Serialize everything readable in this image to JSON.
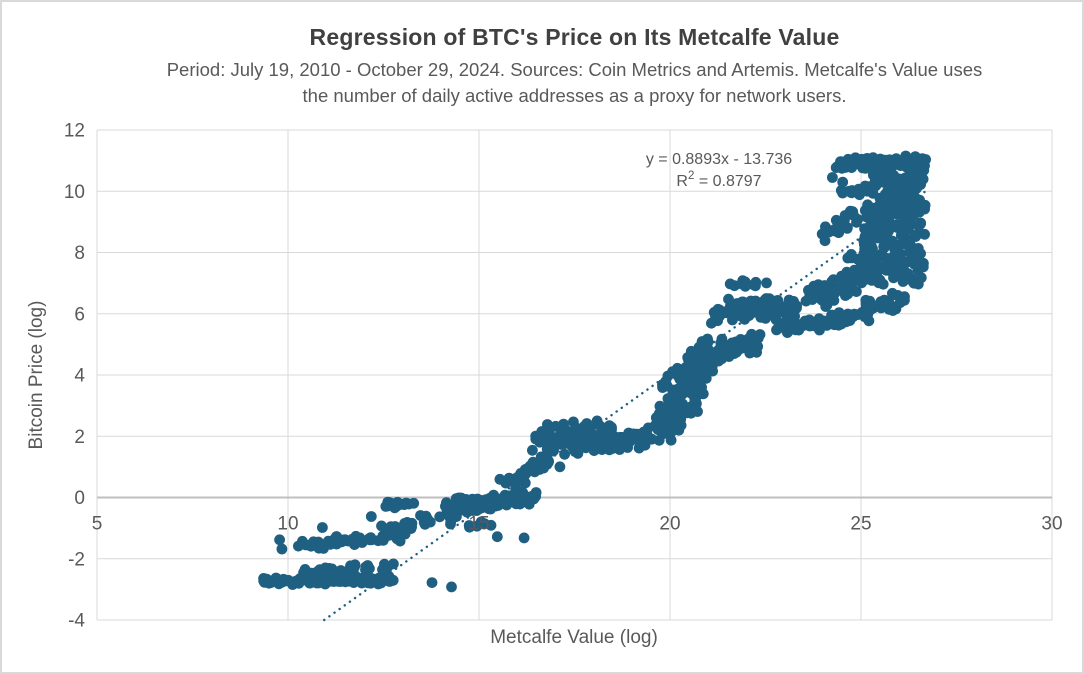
{
  "chart_data": {
    "type": "scatter",
    "title": "Regression of BTC's Price on Its Metcalfe Value",
    "subtitle_lines": [
      "Period: July 19, 2010 - October 29, 2024. Sources: Coin Metrics and Artemis. Metcalfe's Value uses",
      "the number of daily active addresses as a proxy for network users."
    ],
    "xlabel": "Metcalfe Value (log)",
    "ylabel": "Bitcoin Price (log)",
    "xlim": [
      5,
      30
    ],
    "ylim": [
      -4,
      12
    ],
    "x_ticks": [
      5,
      10,
      15,
      20,
      25,
      30
    ],
    "y_ticks": [
      12,
      10,
      8,
      6,
      4,
      2,
      0,
      -2,
      -4
    ],
    "grid": true,
    "legend": "none",
    "colors": {
      "gridline": "#d9d9d9",
      "axis_line": "#bfbfbf",
      "tick_text": "#595959",
      "axis_title_text": "#595959",
      "title_text": "#404040",
      "marker": "#1f6082"
    },
    "marker_radius": 5.4,
    "trendline": {
      "style": "dotted",
      "slope": 0.8893,
      "intercept": -13.736,
      "x_max": 26.7,
      "equation_label": "y = 0.8893x - 13.736",
      "r2_base": "R",
      "r2_sup": "2",
      "r2_value": " = 0.8797"
    },
    "point_cloud": {
      "seed": 5,
      "clusters": [
        {
          "x1": 9.3,
          "y1": -2.72,
          "x2": 12.75,
          "y2": -2.7,
          "n": 95,
          "jx": 0.12,
          "jy": 0.15
        },
        {
          "x1": 10.35,
          "y1": -2.38,
          "x2": 12.8,
          "y2": -2.32,
          "n": 30,
          "jx": 0.3,
          "jy": 0.18
        },
        {
          "x1": 10.35,
          "y1": -1.55,
          "x2": 13.15,
          "y2": -1.22,
          "n": 50,
          "jx": 0.25,
          "jy": 0.22
        },
        {
          "x1": 12.6,
          "y1": -1.05,
          "x2": 14.55,
          "y2": -0.5,
          "n": 28,
          "jx": 0.3,
          "jy": 0.28
        },
        {
          "x1": 12.55,
          "y1": -0.3,
          "x2": 13.25,
          "y2": -0.12,
          "n": 14,
          "jx": 0.18,
          "jy": 0.16
        },
        {
          "x1": 14.3,
          "y1": -0.32,
          "x2": 16.35,
          "y2": 0.02,
          "n": 115,
          "jx": 0.28,
          "jy": 0.28
        },
        {
          "x1": 14.6,
          "y1": -0.92,
          "x2": 15.35,
          "y2": -0.88,
          "n": 6,
          "jx": 0.25,
          "jy": 0.15
        },
        {
          "x1": 15.75,
          "y1": 0.35,
          "x2": 16.9,
          "y2": 1.3,
          "n": 34,
          "jx": 0.3,
          "jy": 0.32
        },
        {
          "x1": 16.6,
          "y1": 1.85,
          "x2": 18.3,
          "y2": 2.05,
          "n": 105,
          "jx": 0.35,
          "jy": 0.58
        },
        {
          "x1": 18.0,
          "y1": 1.8,
          "x2": 19.5,
          "y2": 1.95,
          "n": 70,
          "jx": 0.3,
          "jy": 0.36
        },
        {
          "x1": 19.75,
          "y1": 2.1,
          "x2": 20.6,
          "y2": 3.4,
          "n": 70,
          "jx": 0.42,
          "jy": 0.45
        },
        {
          "x1": 20.1,
          "y1": 3.45,
          "x2": 21.25,
          "y2": 5.0,
          "n": 85,
          "jx": 0.42,
          "jy": 0.45
        },
        {
          "x1": 21.2,
          "y1": 4.72,
          "x2": 22.35,
          "y2": 4.95,
          "n": 35,
          "jx": 0.3,
          "jy": 0.33
        },
        {
          "x1": 21.9,
          "y1": 5.1,
          "x2": 22.3,
          "y2": 5.3,
          "n": 14,
          "jx": 0.2,
          "jy": 0.25
        },
        {
          "x1": 21.35,
          "y1": 6.05,
          "x2": 23.25,
          "y2": 6.2,
          "n": 130,
          "jx": 0.38,
          "jy": 0.45
        },
        {
          "x1": 21.7,
          "y1": 6.95,
          "x2": 22.45,
          "y2": 7.0,
          "n": 12,
          "jx": 0.28,
          "jy": 0.16
        },
        {
          "x1": 22.85,
          "y1": 5.45,
          "x2": 24.6,
          "y2": 5.85,
          "n": 45,
          "jx": 0.3,
          "jy": 0.3
        },
        {
          "x1": 24.6,
          "y1": 5.9,
          "x2": 25.35,
          "y2": 6.15,
          "n": 18,
          "jx": 0.25,
          "jy": 0.28
        },
        {
          "x1": 23.7,
          "y1": 6.35,
          "x2": 25.2,
          "y2": 7.4,
          "n": 70,
          "jx": 0.45,
          "jy": 0.38
        },
        {
          "x1": 25.3,
          "y1": 6.25,
          "x2": 26.2,
          "y2": 6.45,
          "n": 22,
          "jx": 0.3,
          "jy": 0.3
        },
        {
          "x1": 24.75,
          "y1": 7.7,
          "x2": 25.2,
          "y2": 8.4,
          "n": 16,
          "jx": 0.25,
          "jy": 0.3
        },
        {
          "x1": 25.85,
          "y1": 7.0,
          "x2": 25.92,
          "y2": 10.75,
          "n": 250,
          "jx": 0.8,
          "jy": 0.3
        },
        {
          "x1": 24.35,
          "y1": 10.92,
          "x2": 26.6,
          "y2": 11.0,
          "n": 85,
          "jx": 0.16,
          "jy": 0.22
        },
        {
          "x1": 24.15,
          "y1": 8.55,
          "x2": 24.9,
          "y2": 9.25,
          "n": 24,
          "jx": 0.24,
          "jy": 0.26
        },
        {
          "x1": 24.6,
          "y1": 9.85,
          "x2": 25.15,
          "y2": 10.1,
          "n": 14,
          "jx": 0.2,
          "jy": 0.2
        }
      ],
      "lone_points": [
        [
          9.78,
          -1.38
        ],
        [
          9.84,
          -1.68
        ],
        [
          10.9,
          -0.98
        ],
        [
          12.18,
          -0.62
        ],
        [
          13.77,
          -2.78
        ],
        [
          14.28,
          -2.92
        ],
        [
          15.48,
          -1.28
        ],
        [
          16.18,
          -1.32
        ],
        [
          24.25,
          10.45
        ],
        [
          24.52,
          10.3
        ]
      ]
    }
  }
}
